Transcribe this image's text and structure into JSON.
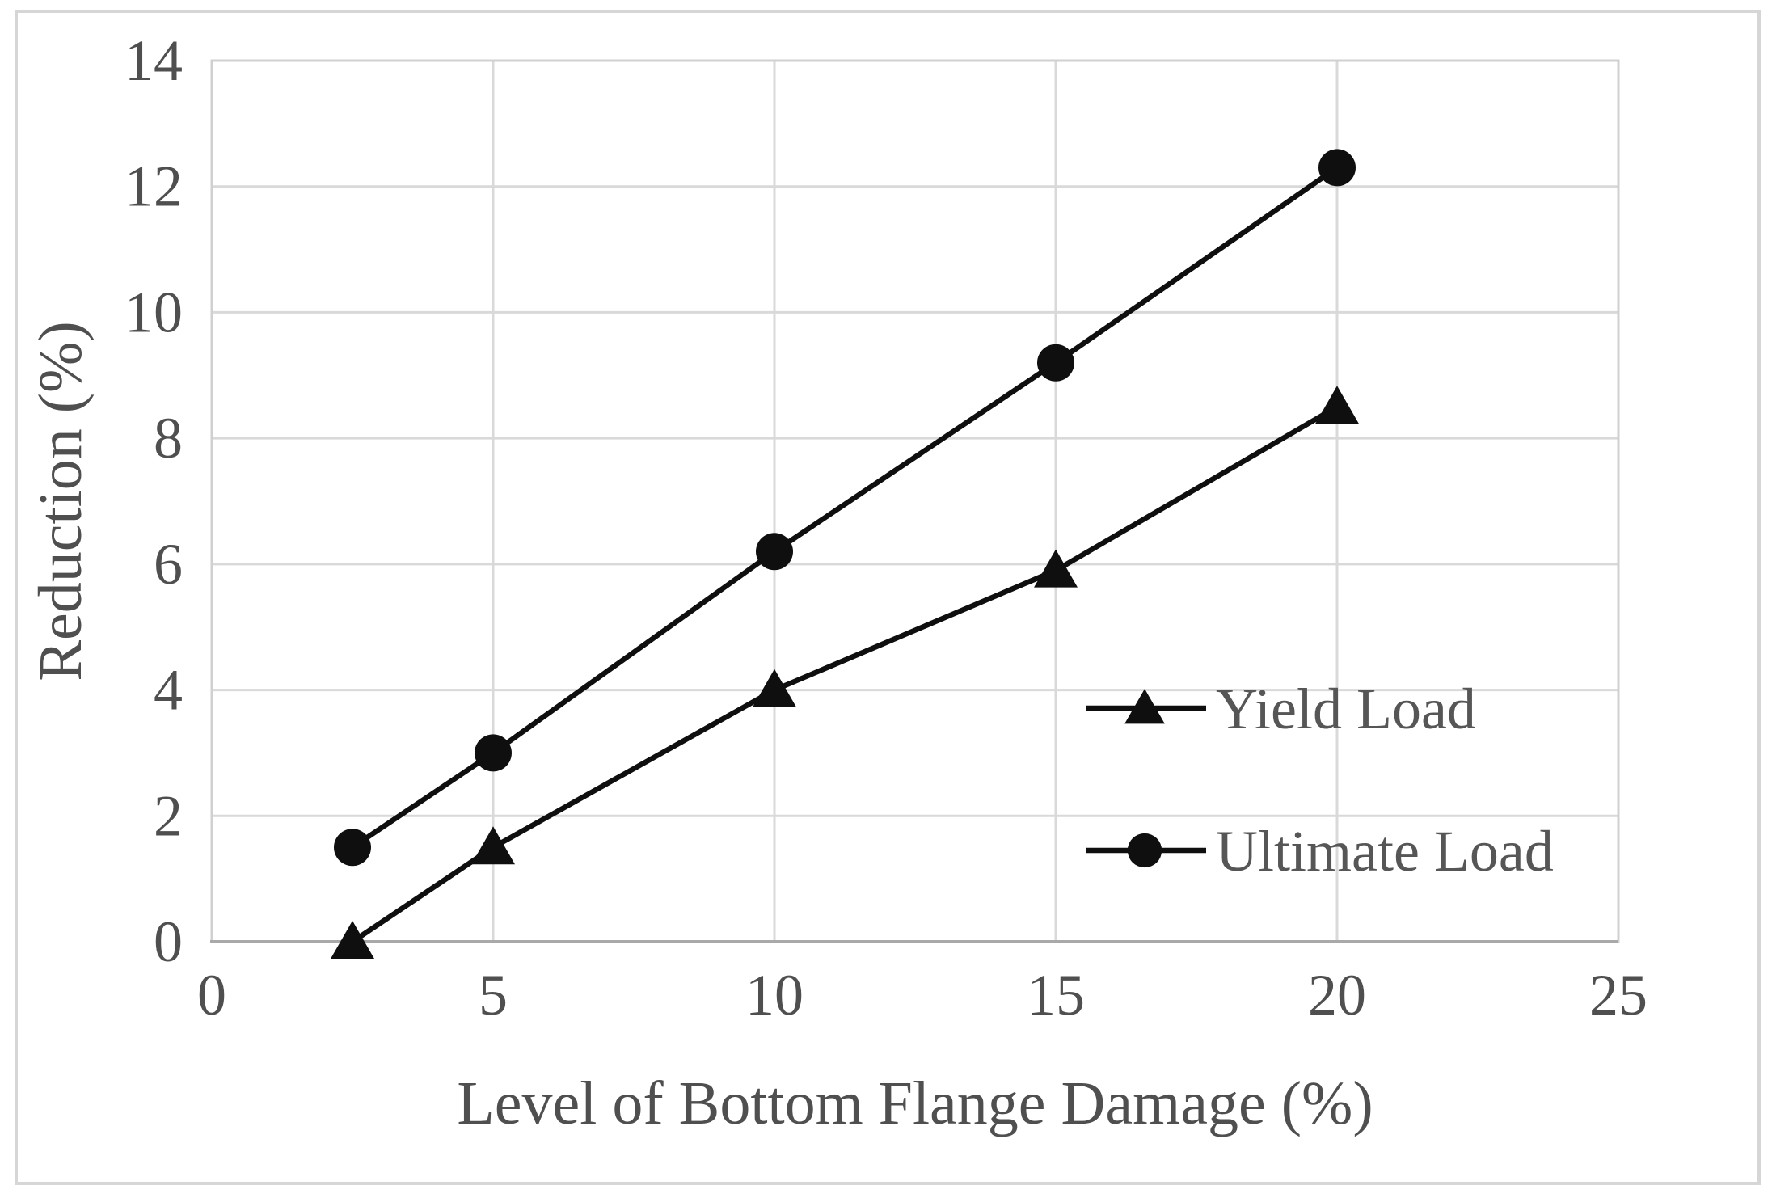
{
  "figure": {
    "kind": "excel-style line chart figure",
    "background_color": "#ffffff",
    "frame_color": "#d6d6d6"
  },
  "chart_data": {
    "type": "line",
    "title": "",
    "xlabel": "Level of Bottom Flange Damage (%)",
    "ylabel": "Reduction (%)",
    "xlim": [
      0,
      25
    ],
    "ylim": [
      0,
      14
    ],
    "x_ticks": [
      0,
      5,
      10,
      15,
      20,
      25
    ],
    "y_ticks": [
      0,
      2,
      4,
      6,
      8,
      10,
      12,
      14
    ],
    "grid": true,
    "legend_position": "inside-right",
    "series": [
      {
        "name": "Yield Load",
        "marker": "triangle",
        "color": "#0f0f0f",
        "x": [
          2.5,
          5,
          10,
          15,
          20
        ],
        "y": [
          0.0,
          1.5,
          4.0,
          5.9,
          8.5
        ]
      },
      {
        "name": "Ultimate Load",
        "marker": "circle",
        "color": "#0f0f0f",
        "x": [
          2.5,
          5,
          10,
          15,
          20
        ],
        "y": [
          1.5,
          3.0,
          6.2,
          9.2,
          12.3
        ]
      }
    ],
    "colors": {
      "series_line": "#0f0f0f",
      "tick_text": "#4f4f4f",
      "axis_title_text": "#4f4f4f",
      "legend_text": "#565656",
      "gridline": "#d9d9d9",
      "plot_border": "#d0d0d0",
      "axis_line": "#a9a9a9"
    }
  }
}
